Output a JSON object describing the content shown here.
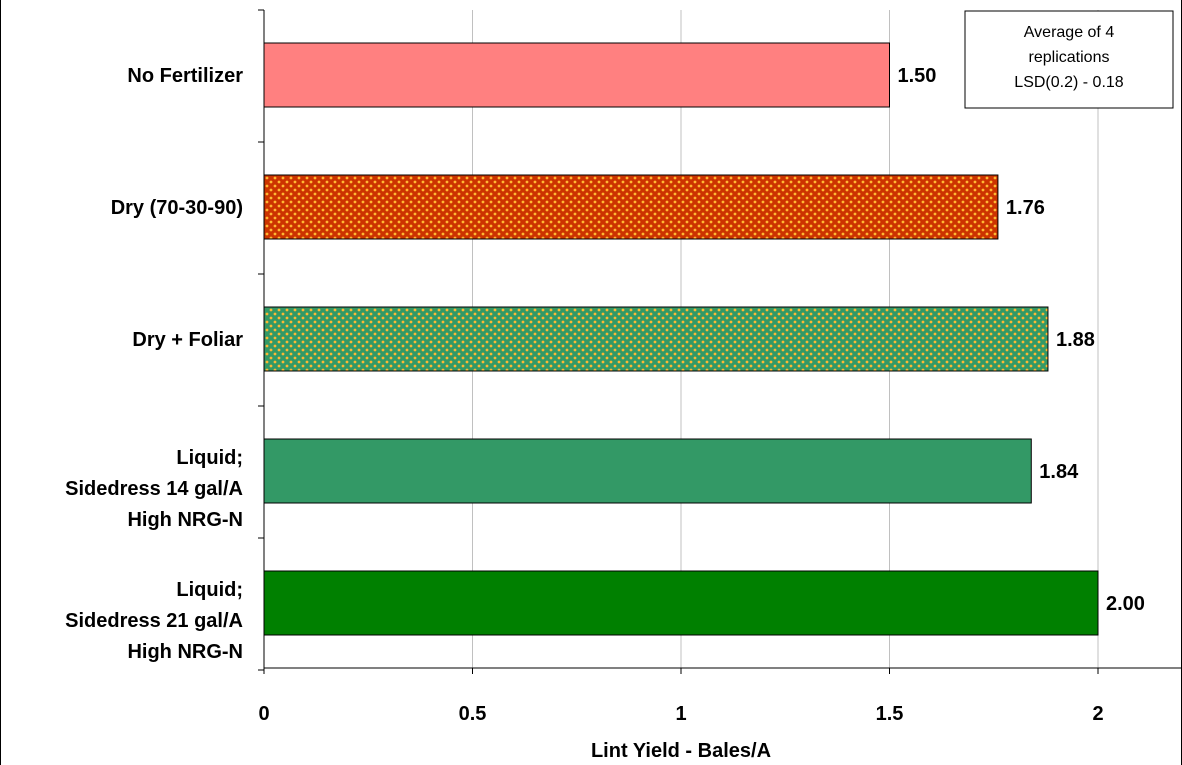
{
  "chart_data": {
    "type": "bar",
    "orientation": "horizontal",
    "categories": [
      [
        "No Fertilizer"
      ],
      [
        "Dry (70-30-90)"
      ],
      [
        "Dry + Foliar"
      ],
      [
        "Liquid;",
        "Sidedress 14 gal/A",
        "High NRG-N"
      ],
      [
        "Liquid;",
        "Sidedress 21 gal/A",
        "High NRG-N"
      ]
    ],
    "values": [
      1.5,
      1.76,
      1.88,
      1.84,
      2.0
    ],
    "data_labels": [
      "1.50",
      "1.76",
      "1.88",
      "1.84",
      "2.00"
    ],
    "bar_styles": [
      {
        "fill": "#ff8080",
        "pattern": "none"
      },
      {
        "fill": "#cc3300",
        "pattern": "dots",
        "dot_color": "#ffb833"
      },
      {
        "fill": "#339966",
        "pattern": "dots",
        "dot_color": "#ffb833"
      },
      {
        "fill": "#339966",
        "pattern": "none"
      },
      {
        "fill": "#008000",
        "pattern": "none"
      }
    ],
    "xlabel": "Lint Yield - Bales/A",
    "ylabel": "",
    "xlim": [
      0,
      2.2
    ],
    "xticks": [
      0,
      0.5,
      1,
      1.5,
      2
    ],
    "xtick_labels": [
      "0",
      "0.5",
      "1",
      "1.5",
      "2"
    ],
    "grid": "vertical",
    "grid_color": "#c0c0c0",
    "annotation": [
      "Average of 4",
      "replications",
      "LSD(0.2) - 0.18"
    ]
  }
}
